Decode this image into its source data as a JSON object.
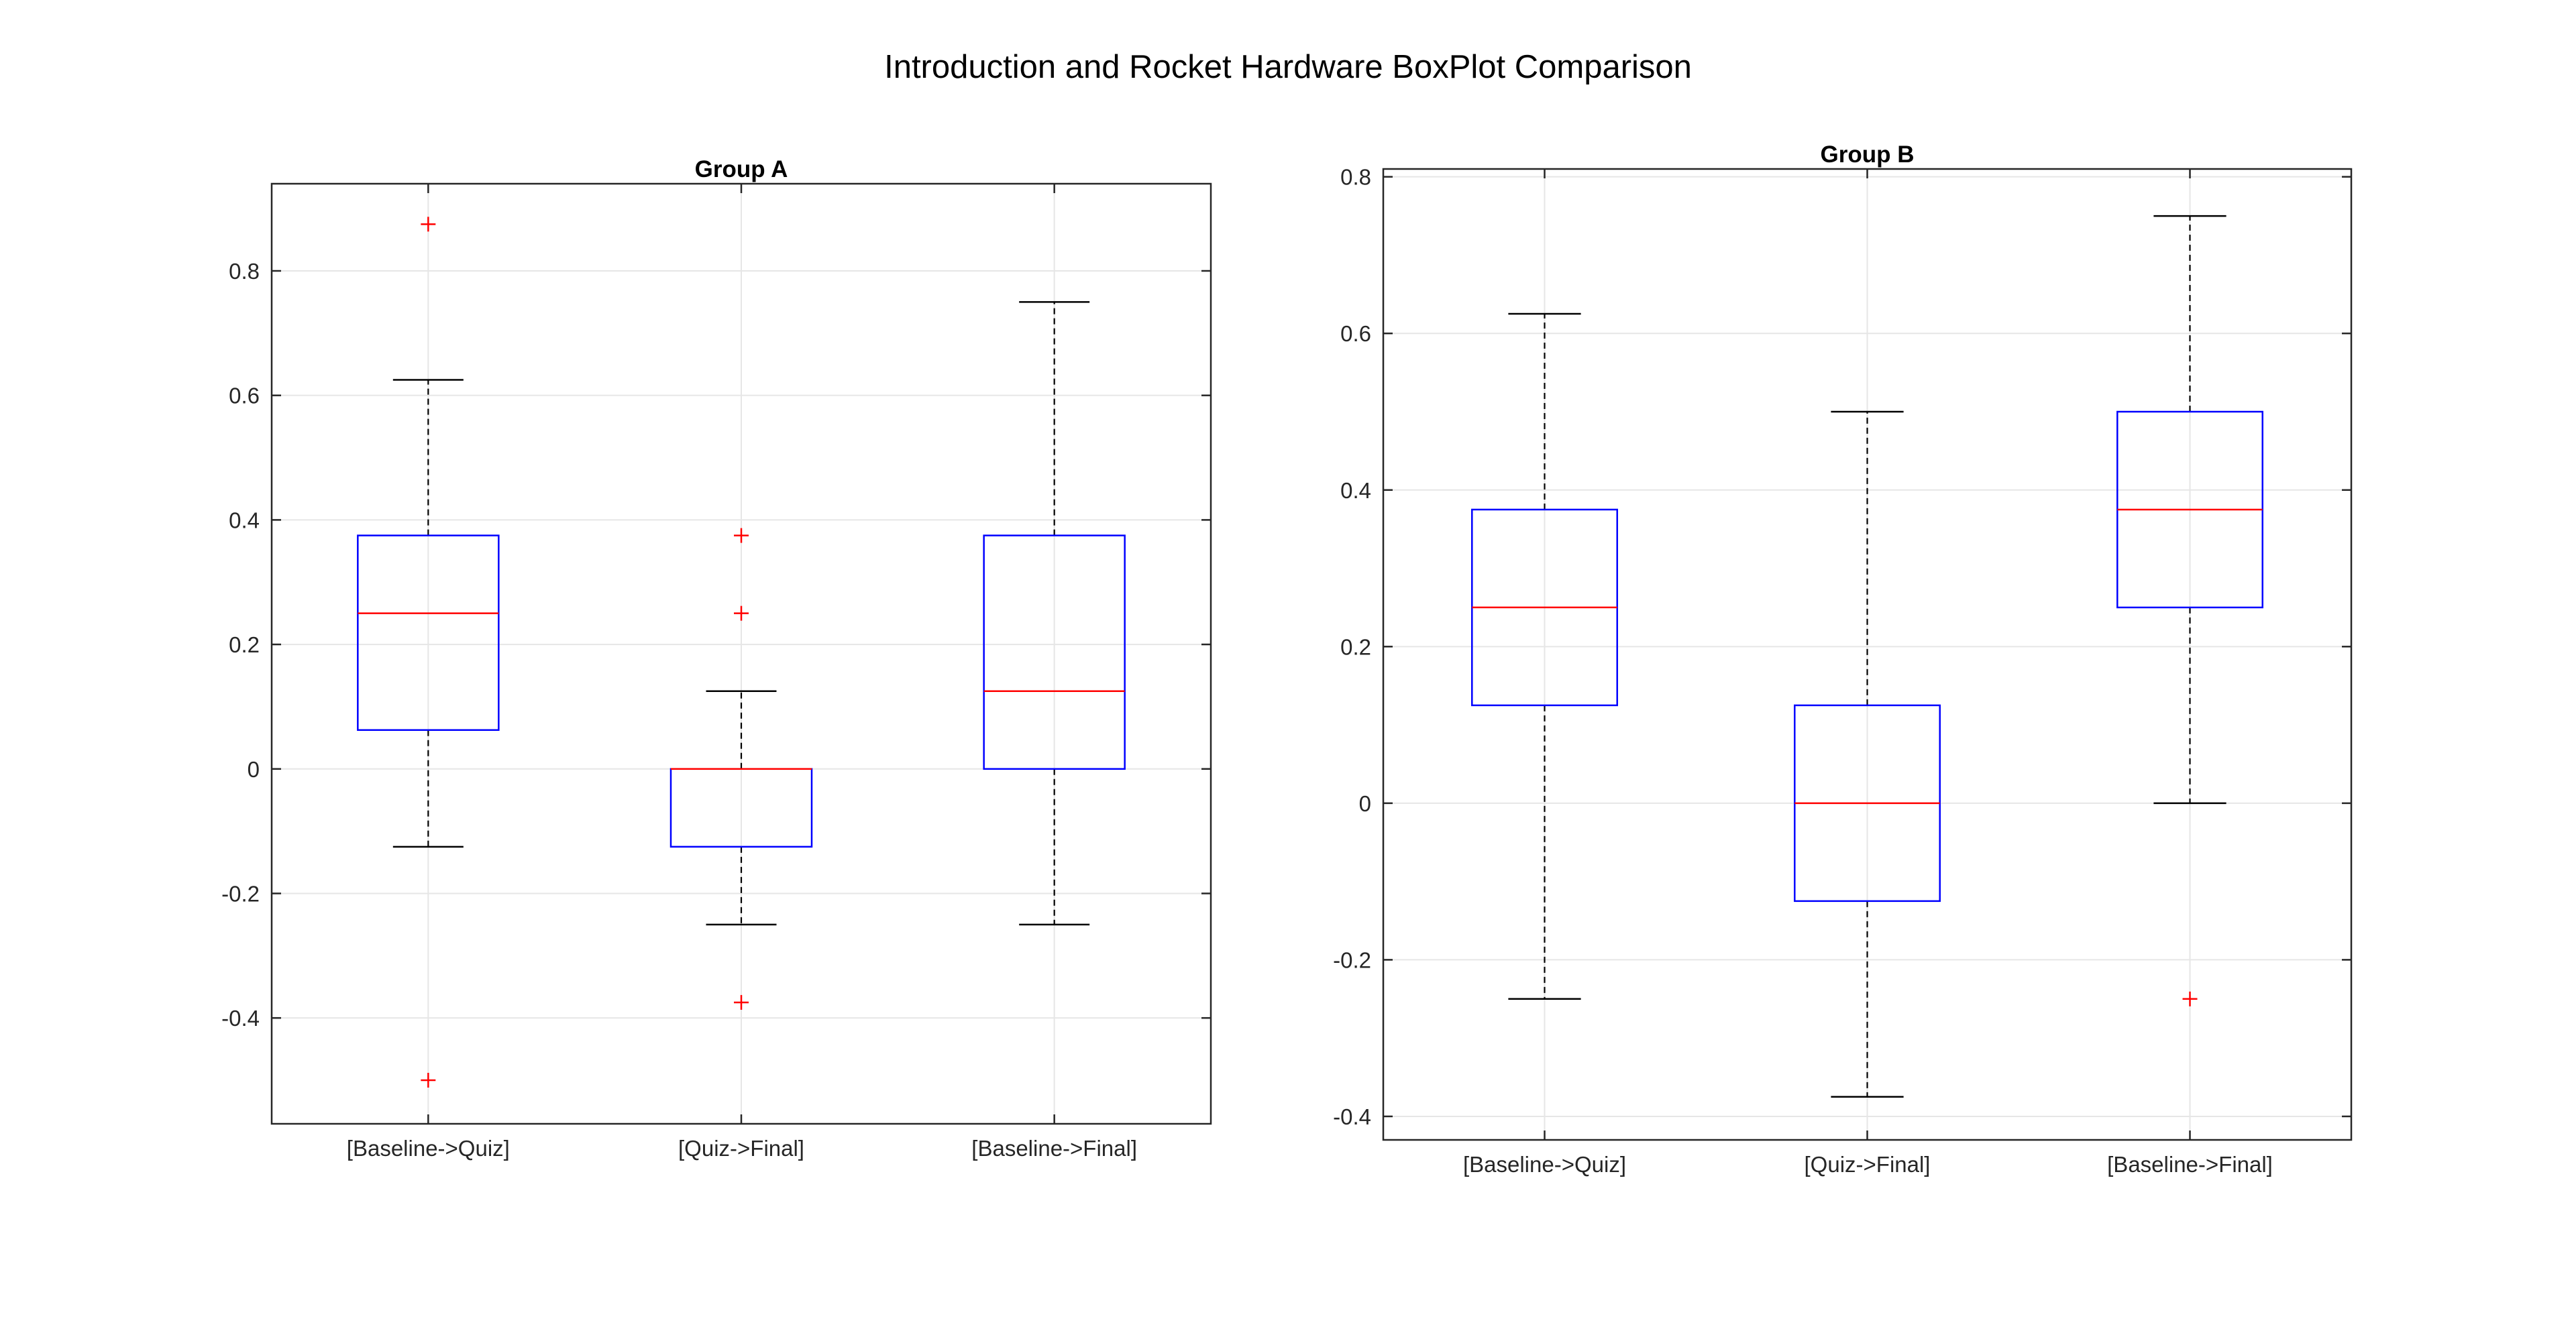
{
  "figure": {
    "title": "Introduction and Rocket Hardware BoxPlot Comparison"
  },
  "colors": {
    "box": "#0000ff",
    "median": "#ff0000",
    "whisker": "#000000",
    "outlier": "#ff0000",
    "grid": "#e6e6e6",
    "axis": "#262626"
  },
  "chart_data": [
    {
      "type": "boxplot",
      "title": "Group A",
      "categories": [
        "[Baseline->Quiz]",
        "[Quiz->Final]",
        "[Baseline->Final]"
      ],
      "ylim": [
        -0.57,
        0.94
      ],
      "yticks": [
        -0.4,
        -0.2,
        0,
        0.2,
        0.4,
        0.6,
        0.8
      ],
      "yticklabels": [
        "-0.4",
        "-0.2",
        "0",
        "0.2",
        "0.4",
        "0.6",
        "0.8"
      ],
      "grid": true,
      "boxes": [
        {
          "whisker_low": -0.125,
          "q1": 0.0625,
          "median": 0.25,
          "q3": 0.375,
          "whisker_high": 0.625,
          "outliers": [
            0.875,
            -0.5
          ]
        },
        {
          "whisker_low": -0.25,
          "q1": -0.125,
          "median": 0.0,
          "q3": 0.0,
          "whisker_high": 0.125,
          "outliers": [
            0.375,
            0.25,
            -0.375
          ]
        },
        {
          "whisker_low": -0.25,
          "q1": 0.0,
          "median": 0.125,
          "q3": 0.375,
          "whisker_high": 0.75,
          "outliers": []
        }
      ]
    },
    {
      "type": "boxplot",
      "title": "Group B",
      "categories": [
        "[Baseline->Quiz]",
        "[Quiz->Final]",
        "[Baseline->Final]"
      ],
      "ylim": [
        -0.43,
        0.81
      ],
      "yticks": [
        -0.4,
        -0.2,
        0,
        0.2,
        0.4,
        0.6,
        0.8
      ],
      "yticklabels": [
        "-0.4",
        "-0.2",
        "0",
        "0.2",
        "0.4",
        "0.6",
        "0.8"
      ],
      "grid": true,
      "boxes": [
        {
          "whisker_low": -0.25,
          "q1": 0.125,
          "median": 0.25,
          "q3": 0.375,
          "whisker_high": 0.625,
          "outliers": []
        },
        {
          "whisker_low": -0.375,
          "q1": -0.125,
          "median": 0.0,
          "q3": 0.125,
          "whisker_high": 0.5,
          "outliers": []
        },
        {
          "whisker_low": 0.0,
          "q1": 0.25,
          "median": 0.375,
          "q3": 0.5,
          "whisker_high": 0.75,
          "outliers": [
            -0.25
          ]
        }
      ]
    }
  ]
}
